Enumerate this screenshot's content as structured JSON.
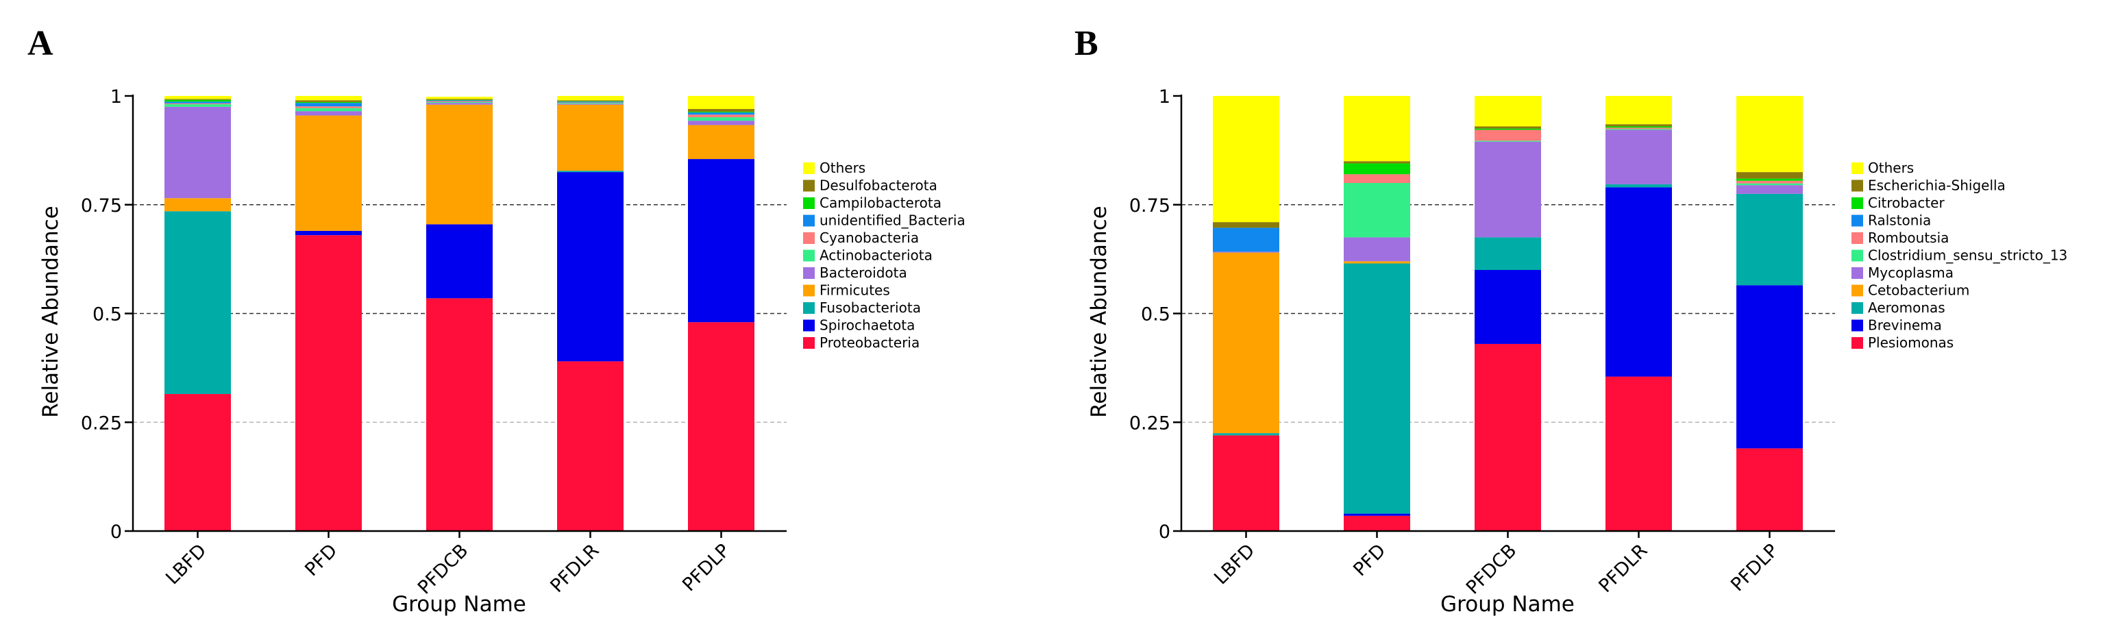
{
  "chart_data": [
    {
      "panel": "A",
      "type": "bar",
      "stacked": true,
      "xlabel": "Group Name",
      "ylabel": "Relative Abundance",
      "ylim": [
        0,
        1
      ],
      "yticks": [
        0,
        0.25,
        0.5,
        0.75,
        1
      ],
      "ytick_labels": [
        "0",
        "0.25",
        "0.5",
        "0.75",
        "1"
      ],
      "categories": [
        "LBFD",
        "PFD",
        "PFDCB",
        "PFDLR",
        "PFDLP"
      ],
      "series": [
        {
          "name": "Proteobacteria",
          "color": "#ff0d3b",
          "values": [
            0.315,
            0.68,
            0.535,
            0.39,
            0.48
          ]
        },
        {
          "name": "Spirochaetota",
          "color": "#0000ee",
          "values": [
            0.0,
            0.01,
            0.17,
            0.435,
            0.375
          ]
        },
        {
          "name": "Fusobacteriota",
          "color": "#00aca6",
          "values": [
            0.42,
            0.0,
            0.0,
            0.003,
            0.0
          ]
        },
        {
          "name": "Firmicutes",
          "color": "#ffa200",
          "values": [
            0.03,
            0.265,
            0.275,
            0.152,
            0.078
          ]
        },
        {
          "name": "Bacteroidota",
          "color": "#a070e0",
          "values": [
            0.21,
            0.01,
            0.004,
            0.002,
            0.01
          ]
        },
        {
          "name": "Actinobacteriota",
          "color": "#33ee88",
          "values": [
            0.006,
            0.007,
            0.002,
            0.002,
            0.008
          ]
        },
        {
          "name": "Cyanobacteria",
          "color": "#ff7a7a",
          "values": [
            0.002,
            0.004,
            0.002,
            0.001,
            0.006
          ]
        },
        {
          "name": "unidentified_Bacteria",
          "color": "#1188ee",
          "values": [
            0.004,
            0.008,
            0.002,
            0.002,
            0.005
          ]
        },
        {
          "name": "Campilobacterota",
          "color": "#00dd00",
          "values": [
            0.004,
            0.002,
            0.001,
            0.001,
            0.002
          ]
        },
        {
          "name": "Desulfobacterota",
          "color": "#8b7b0a",
          "values": [
            0.002,
            0.004,
            0.002,
            0.002,
            0.006
          ]
        },
        {
          "name": "Others",
          "color": "#ffff00",
          "values": [
            0.007,
            0.01,
            0.005,
            0.01,
            0.03
          ]
        }
      ]
    },
    {
      "panel": "B",
      "type": "bar",
      "stacked": true,
      "xlabel": "Group Name",
      "ylabel": "Relative Abundance",
      "ylim": [
        0,
        1
      ],
      "yticks": [
        0,
        0.25,
        0.5,
        0.75,
        1
      ],
      "ytick_labels": [
        "0",
        "0.25",
        "0.5",
        "0.75",
        "1"
      ],
      "categories": [
        "LBFD",
        "PFD",
        "PFDCB",
        "PFDLR",
        "PFDLP"
      ],
      "series": [
        {
          "name": "Plesiomonas",
          "color": "#ff0d3b",
          "values": [
            0.22,
            0.035,
            0.43,
            0.355,
            0.19
          ]
        },
        {
          "name": "Brevinema",
          "color": "#0000ee",
          "values": [
            0.0,
            0.005,
            0.17,
            0.435,
            0.375
          ]
        },
        {
          "name": "Aeromonas",
          "color": "#00aca6",
          "values": [
            0.005,
            0.575,
            0.075,
            0.007,
            0.21
          ]
        },
        {
          "name": "Cetobacterium",
          "color": "#ffa200",
          "values": [
            0.415,
            0.005,
            0.0,
            0.0,
            0.0
          ]
        },
        {
          "name": "Mycoplasma",
          "color": "#a070e0",
          "values": [
            0.002,
            0.055,
            0.22,
            0.125,
            0.02
          ]
        },
        {
          "name": "Clostridium_sensu_stricto_13",
          "color": "#33ee88",
          "values": [
            0.0,
            0.125,
            0.002,
            0.002,
            0.004
          ]
        },
        {
          "name": "Romboutsia",
          "color": "#ff7a7a",
          "values": [
            0.0,
            0.02,
            0.025,
            0.003,
            0.006
          ]
        },
        {
          "name": "Ralstonia",
          "color": "#1188ee",
          "values": [
            0.055,
            0.0,
            0.0,
            0.0,
            0.0
          ]
        },
        {
          "name": "Citrobacter",
          "color": "#00dd00",
          "values": [
            0.0,
            0.025,
            0.003,
            0.003,
            0.005
          ]
        },
        {
          "name": "Escherichia-Shigella",
          "color": "#8b7b0a",
          "values": [
            0.013,
            0.005,
            0.005,
            0.005,
            0.015
          ]
        },
        {
          "name": "Others",
          "color": "#ffff00",
          "values": [
            0.29,
            0.15,
            0.07,
            0.065,
            0.175
          ]
        }
      ]
    }
  ],
  "figure": {
    "panel_labels": [
      "A",
      "B"
    ]
  }
}
